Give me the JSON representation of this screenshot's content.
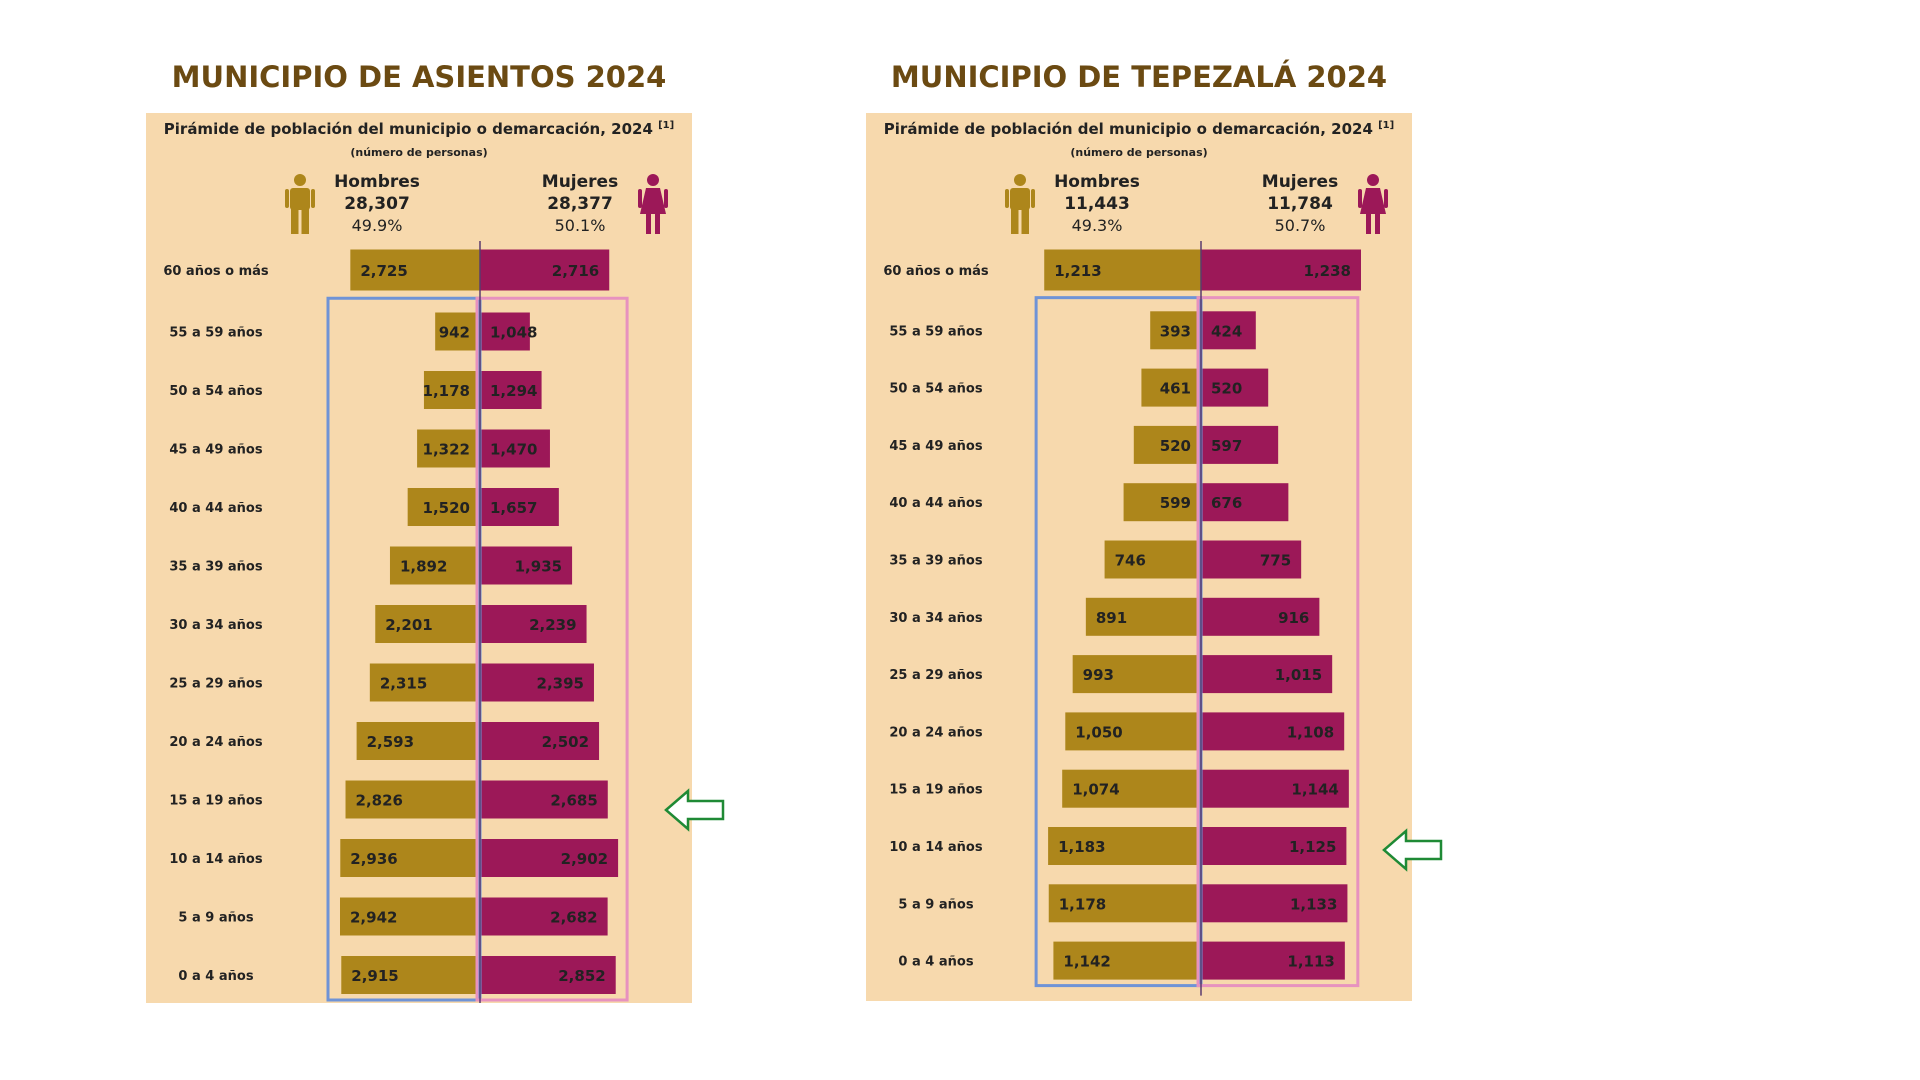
{
  "chart_data": [
    {
      "type": "bar",
      "municipio_title": "MUNICIPIO DE ASIENTOS 2024",
      "title": "Pirámide de población del municipio o demarcación, 2024",
      "title_superscript": "[1]",
      "subtitle": "(número de personas)",
      "summary": {
        "men_label": "Hombres",
        "men_total": "28,307",
        "men_pct": "49.9%",
        "women_label": "Mujeres",
        "women_total": "28,377",
        "women_pct": "50.1%"
      },
      "categories": [
        "60 años o más",
        "55 a 59 años",
        "50 a 54 años",
        "45 a 49 años",
        "40 a 44 años",
        "35 a 39 años",
        "30 a 34 años",
        "25 a 29 años",
        "20 a 24 años",
        "15 a 19 años",
        "10 a 14 años",
        "5 a 9 años",
        "0 a 4 años"
      ],
      "series": [
        {
          "name": "Hombres",
          "values": [
            2725,
            942,
            1178,
            1322,
            1520,
            1892,
            2201,
            2315,
            2593,
            2826,
            2936,
            2942,
            2915
          ],
          "labels": [
            "2,725",
            "942",
            "1,178",
            "1,322",
            "1,520",
            "1,892",
            "2,201",
            "2,315",
            "2,593",
            "2,826",
            "2,936",
            "2,942",
            "2,915"
          ]
        },
        {
          "name": "Mujeres",
          "values": [
            2716,
            1048,
            1294,
            1470,
            1657,
            1935,
            2239,
            2395,
            2502,
            2685,
            2902,
            2682,
            2852
          ],
          "labels": [
            "2,716",
            "1,048",
            "1,294",
            "1,470",
            "1,657",
            "1,935",
            "2,239",
            "2,395",
            "2,502",
            "2,685",
            "2,902",
            "2,682",
            "2,852"
          ]
        }
      ],
      "highlighted_category": "15 a 19 años",
      "legend": "none",
      "grid": false
    },
    {
      "type": "bar",
      "municipio_title": "MUNICIPIO DE TEPEZALÁ 2024",
      "title": "Pirámide de población del municipio o demarcación, 2024",
      "title_superscript": "[1]",
      "subtitle": "(número de personas)",
      "summary": {
        "men_label": "Hombres",
        "men_total": "11,443",
        "men_pct": "49.3%",
        "women_label": "Mujeres",
        "women_total": "11,784",
        "women_pct": "50.7%"
      },
      "categories": [
        "60 años o más",
        "55 a 59 años",
        "50 a 54 años",
        "45 a 49 años",
        "40 a 44 años",
        "35 a 39 años",
        "30 a 34 años",
        "25 a 29 años",
        "20 a 24 años",
        "15 a 19 años",
        "10 a 14 años",
        "5 a 9 años",
        "0 a 4 años"
      ],
      "series": [
        {
          "name": "Hombres",
          "values": [
            1213,
            393,
            461,
            520,
            599,
            746,
            891,
            993,
            1050,
            1074,
            1183,
            1178,
            1142
          ],
          "labels": [
            "1,213",
            "393",
            "461",
            "520",
            "599",
            "746",
            "891",
            "993",
            "1,050",
            "1,074",
            "1,183",
            "1,178",
            "1,142"
          ]
        },
        {
          "name": "Mujeres",
          "values": [
            1238,
            424,
            520,
            597,
            676,
            775,
            916,
            1015,
            1108,
            1144,
            1125,
            1133,
            1113
          ],
          "labels": [
            "1,238",
            "424",
            "520",
            "597",
            "676",
            "775",
            "916",
            "1,015",
            "1,108",
            "1,144",
            "1,125",
            "1,133",
            "1,113"
          ]
        }
      ],
      "highlighted_category": "10 a 14 años",
      "legend": "none",
      "grid": false
    }
  ],
  "colors": {
    "men": "#ad861b",
    "women": "#9c1858",
    "panel_bg": "#f7d9ad",
    "title": "#6b4a12",
    "blue_frame": "#6f93d6",
    "pink_frame": "#e792bf",
    "arrow": "#1f8a35"
  },
  "icons": [
    "man-icon",
    "woman-icon",
    "arrow-left-icon"
  ]
}
